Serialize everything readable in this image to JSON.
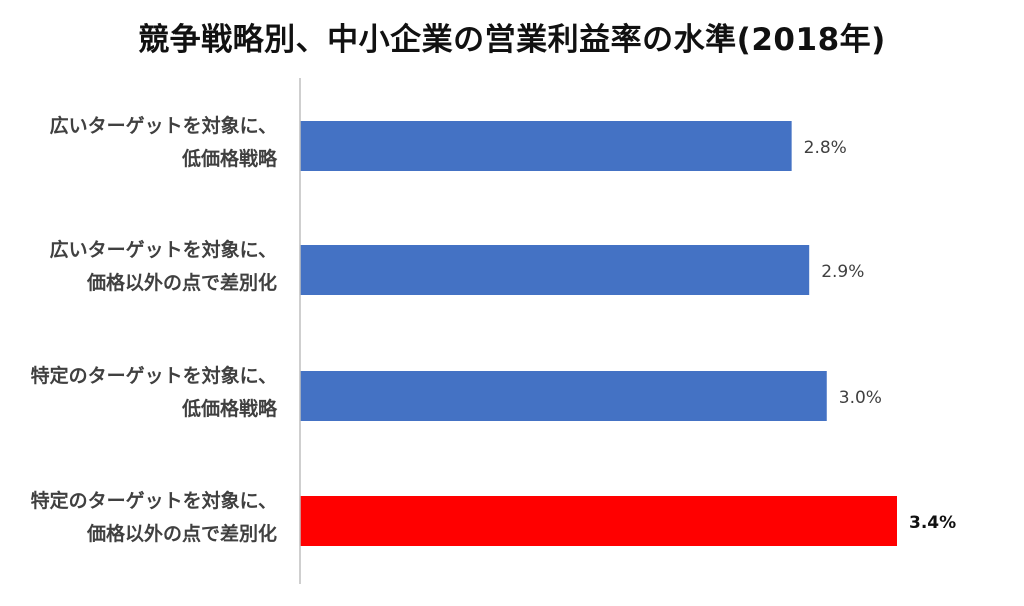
{
  "chart_data": {
    "type": "bar",
    "orientation": "horizontal",
    "title": "競争戦略別、中小企業の営業利益率の水準(2018年)",
    "categories": [
      [
        "広いターゲットを対象に、",
        "低価格戦略"
      ],
      [
        "広いターゲットを対象に、",
        "価格以外の点で差別化"
      ],
      [
        "特定のターゲットを対象に、",
        "低価格戦略"
      ],
      [
        "特定のターゲットを対象に、",
        "価格以外の点で差別化"
      ]
    ],
    "values": [
      2.8,
      2.9,
      3.0,
      3.4
    ],
    "data_labels": [
      "2.8%",
      "2.9%",
      "3.0%",
      "3.4%"
    ],
    "highlight_index": 3,
    "xlim": [
      0,
      3.4
    ],
    "grid": false,
    "colors": {
      "bar": "#4472C4",
      "highlight": "#FF0000",
      "axis": "#BFBFBF",
      "label": "#404040"
    }
  }
}
